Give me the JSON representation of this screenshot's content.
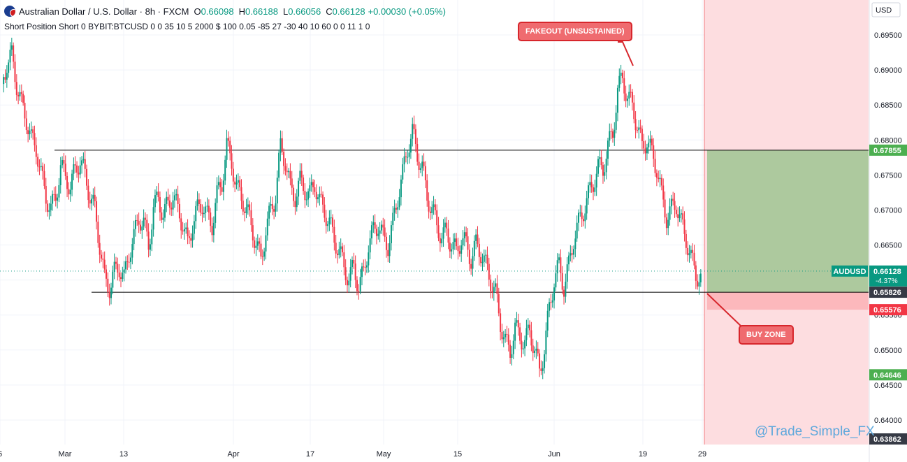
{
  "header": {
    "title": "Australian Dollar / U.S. Dollar · 8h · FXCM",
    "open_label": "O",
    "open": "0.66098",
    "high_label": "H",
    "high": "0.66188",
    "low_label": "L",
    "low": "0.66056",
    "close_label": "C",
    "close": "0.66128",
    "change": "+0.00030 (+0.05%)",
    "indicator_line": "Short Position Short 0 BYBIT:BTCUSD 0 0 35 10 5 2000 $ 100 0.05 -85 27 -30 40 10 60 0 0 11 1 0",
    "flag_icon": "australia-flag-icon"
  },
  "colors": {
    "up": "#089981",
    "down": "#f23645",
    "profit_zone": "#adc99e",
    "stop_zone": "#fcb8bc",
    "shaded_future": "#fddde0",
    "level_line": "#000000",
    "callout_fill": "#ef6b6f",
    "callout_border": "#d7262c"
  },
  "annotations": {
    "fakeout_label": "FAKEOUT (UNSUSTAINED)",
    "buy_zone_label": "BUY ZONE",
    "watermark": "@Trade_Simple_FX"
  },
  "axis": {
    "currency": "USD",
    "price_ticks": [
      "0.69500",
      "0.69000",
      "0.68500",
      "0.68000",
      "0.67500",
      "0.67000",
      "0.66500",
      "0.66000",
      "0.65500",
      "0.65000",
      "0.64500",
      "0.64000"
    ],
    "time_ticks": [
      "6",
      "Mar",
      "13",
      "Apr",
      "17",
      "May",
      "15",
      "Jun",
      "19",
      "29"
    ]
  },
  "price_labels": {
    "target": "0.67855",
    "symbol": "AUDUSD",
    "current": "0.66128",
    "current_change": "-4.37%",
    "entry": "0.65826",
    "stop": "0.65576",
    "level_a": "0.64646",
    "level_b": "0.63862"
  },
  "chart_data": {
    "type": "candlestick",
    "symbol": "AUDUSD",
    "timeframe": "8h",
    "ylim": [
      0.6383,
      0.698
    ],
    "resistance": 0.67855,
    "support": 0.65826,
    "position": {
      "entry": 0.65826,
      "target": 0.67855,
      "stop": 0.65576
    },
    "price_path": [
      0.688,
      0.691,
      0.692,
      0.688,
      0.685,
      0.683,
      0.68,
      0.679,
      0.675,
      0.672,
      0.67,
      0.672,
      0.676,
      0.675,
      0.673,
      0.676,
      0.677,
      0.675,
      0.672,
      0.67,
      0.665,
      0.66,
      0.659,
      0.661,
      0.662,
      0.66,
      0.664,
      0.666,
      0.669,
      0.668,
      0.665,
      0.67,
      0.672,
      0.669,
      0.671,
      0.672,
      0.67,
      0.668,
      0.665,
      0.668,
      0.67,
      0.671,
      0.669,
      0.668,
      0.672,
      0.674,
      0.679,
      0.677,
      0.673,
      0.672,
      0.67,
      0.668,
      0.665,
      0.663,
      0.667,
      0.67,
      0.672,
      0.679,
      0.677,
      0.673,
      0.672,
      0.674,
      0.673,
      0.672,
      0.674,
      0.671,
      0.67,
      0.668,
      0.666,
      0.664,
      0.662,
      0.66,
      0.662,
      0.659,
      0.661,
      0.665,
      0.667,
      0.668,
      0.666,
      0.665,
      0.668,
      0.672,
      0.675,
      0.679,
      0.681,
      0.678,
      0.676,
      0.672,
      0.67,
      0.668,
      0.666,
      0.667,
      0.665,
      0.664,
      0.666,
      0.665,
      0.663,
      0.665,
      0.664,
      0.662,
      0.66,
      0.658,
      0.654,
      0.651,
      0.65,
      0.653,
      0.652,
      0.651,
      0.653,
      0.65,
      0.647,
      0.65,
      0.656,
      0.66,
      0.662,
      0.659,
      0.662,
      0.666,
      0.668,
      0.67,
      0.672,
      0.674,
      0.676,
      0.676,
      0.679,
      0.681,
      0.687,
      0.689,
      0.686,
      0.685,
      0.682,
      0.679,
      0.68,
      0.678,
      0.676,
      0.672,
      0.669,
      0.67,
      0.671,
      0.668,
      0.666,
      0.663,
      0.661,
      0.66
    ]
  }
}
